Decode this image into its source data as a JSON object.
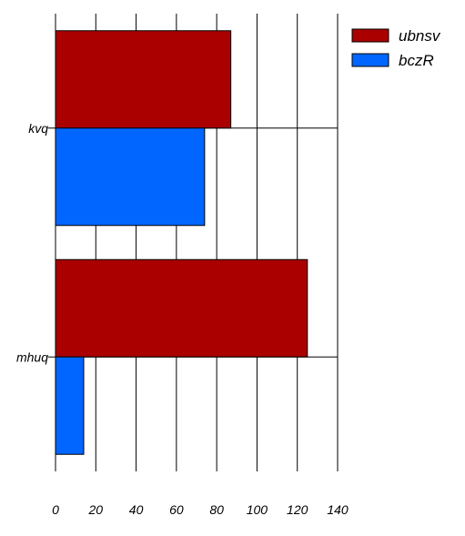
{
  "chart_data": {
    "type": "bar",
    "orientation": "horizontal",
    "categories": [
      "kvq",
      "mhuq"
    ],
    "series": [
      {
        "name": "ubnsv",
        "color": "#aa0000",
        "values": [
          87,
          125
        ]
      },
      {
        "name": "bczR",
        "color": "#0066ff",
        "values": [
          74,
          14
        ]
      }
    ],
    "x_ticks": [
      "0",
      "20",
      "40",
      "60",
      "80",
      "100",
      "120",
      "140"
    ],
    "xlim": [
      0,
      140
    ],
    "grid": true,
    "legend_position": "top-right",
    "title": "",
    "xlabel": "",
    "ylabel": ""
  }
}
